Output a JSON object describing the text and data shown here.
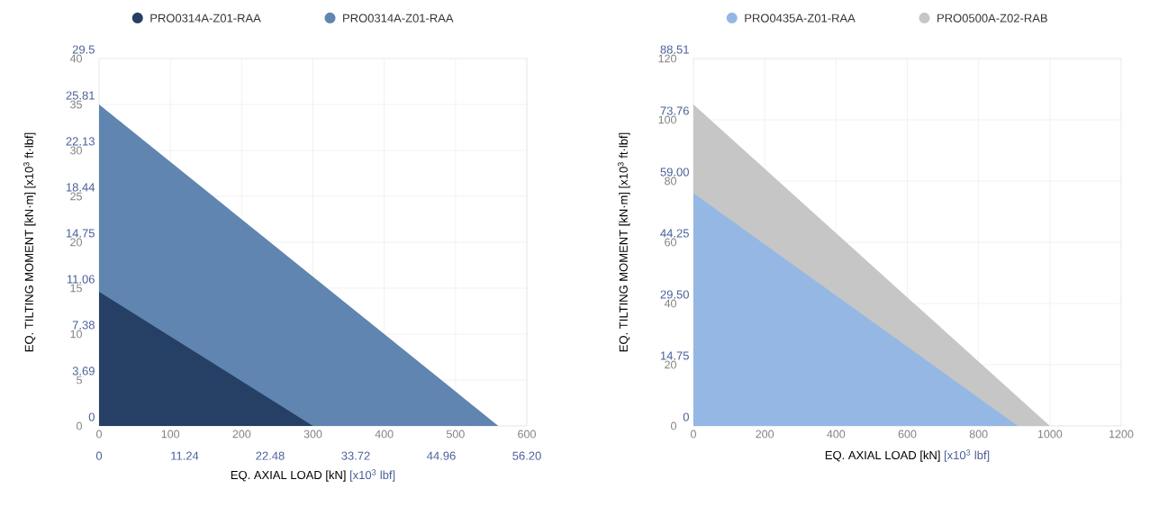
{
  "chart_data": [
    {
      "type": "area",
      "legend": "top",
      "grid": true,
      "xlabel": "EQ. AXIAL LOAD [kN]",
      "x2label": "[x10$^{3}$ lbf]",
      "ylabel": "EQ. TILTING MOMENT [kN·m] [x10$^{3}$ ft·lbf]",
      "xlim": [
        0,
        600
      ],
      "xticks": [
        0,
        100,
        200,
        300,
        400,
        500,
        600
      ],
      "x2lim": [
        0,
        56.2
      ],
      "x2ticks": [
        0,
        11.24,
        22.48,
        33.72,
        44.96,
        {
          "value": 56.2,
          "label": "56.20"
        }
      ],
      "ylim": [
        0,
        40
      ],
      "yticks": [
        0,
        5,
        10,
        15,
        20,
        25,
        30,
        35,
        40
      ],
      "y2lim": [
        0,
        29.5
      ],
      "y2ticks": [
        0,
        3.69,
        7.38,
        11.06,
        14.75,
        18.44,
        22.13,
        25.81,
        29.5
      ],
      "series": [
        {
          "name": "PRO0314A-Z01-RAA",
          "color": "#263f64",
          "x": [
            0,
            300
          ],
          "values": [
            14.6,
            0
          ]
        },
        {
          "name": "PRO0314A-Z01-RAA",
          "color": "#5f85b0",
          "x": [
            0,
            560
          ],
          "values": [
            35,
            0
          ]
        }
      ]
    },
    {
      "type": "area",
      "legend": "top",
      "grid": true,
      "xlabel": "EQ. AXIAL LOAD [kN]",
      "x2label": "[x10$^{3}$ lbf]",
      "ylabel": "EQ. TILTING MOMENT [kN·m] [x10$^{3}$ ft·lbf]",
      "xlim": [
        0,
        1200
      ],
      "xticks": [
        0,
        200,
        400,
        600,
        800,
        1000,
        1200
      ],
      "ylim": [
        0,
        120
      ],
      "yticks": [
        0,
        20,
        40,
        60,
        80,
        100,
        120
      ],
      "y2lim": [
        0,
        88.51
      ],
      "y2ticks": [
        0,
        14.75,
        {
          "value": 29.5,
          "label": "29.50"
        },
        44.25,
        {
          "value": 59,
          "label": "59.00"
        },
        73.76,
        88.51
      ],
      "series": [
        {
          "name": "PRO0435A-Z01-RAA",
          "color": "#94b8e3",
          "x": [
            0,
            910
          ],
          "values": [
            76,
            0
          ]
        },
        {
          "name": "PRO0500A-Z02-RAB",
          "color": "#c6c6c6",
          "x": [
            0,
            1000
          ],
          "values": [
            105,
            0
          ]
        }
      ]
    }
  ]
}
